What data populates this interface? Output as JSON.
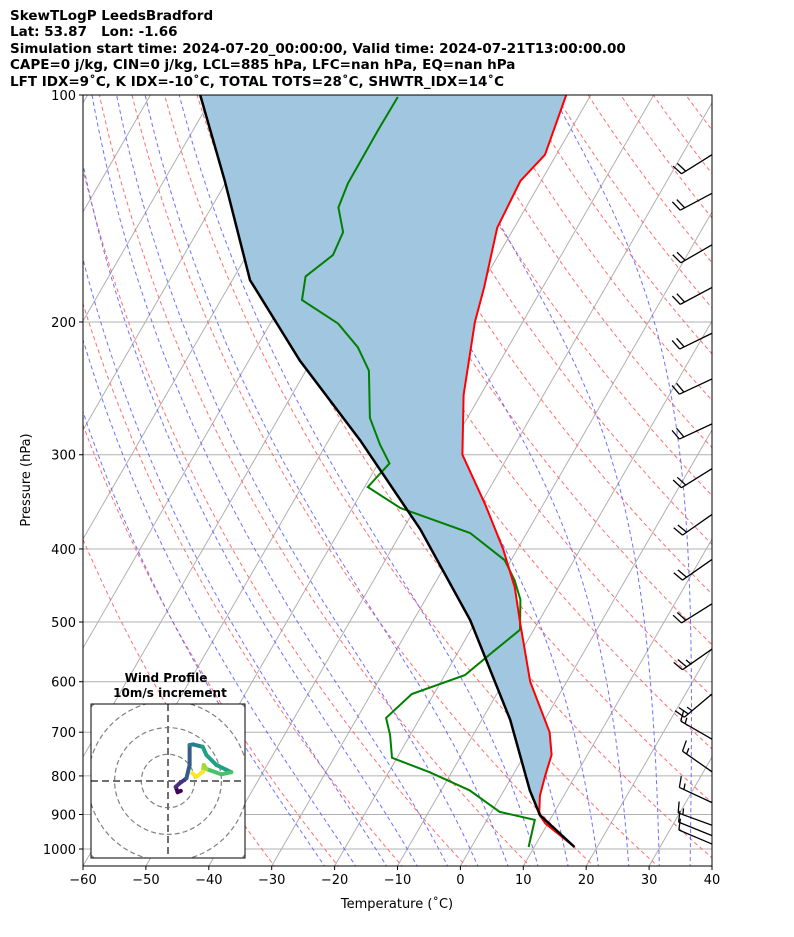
{
  "chart_data": {
    "type": "line",
    "title_lines": [
      "SkewTLogP LeedsBradford",
      "Lat: 53.87   Lon: -1.66",
      "Simulation start time: 2024-07-20_00:00:00, Valid time: 2024-07-21T13:00:00.00",
      "CAPE=0 j/kg, CIN=0 j/kg, LCL=885 hPa, LFC=nan hPa, EQ=nan hPa",
      "LFT IDX=9˚C, K IDX=-10˚C, TOTAL TOTS=28˚C, SHWTR_IDX=14˚C"
    ],
    "xlabel": "Temperature (˚C)",
    "ylabel": "Pressure (hPa)",
    "xlim": [
      -60,
      40
    ],
    "ylim": [
      1050,
      100
    ],
    "x_ticks": [
      -60,
      -50,
      -40,
      -30,
      -20,
      -10,
      0,
      10,
      20,
      30,
      40
    ],
    "x_tick_labels": [
      "−60",
      "−50",
      "−40",
      "−30",
      "−20",
      "−10",
      "0",
      "10",
      "20",
      "30",
      "40"
    ],
    "y_ticks": [
      100,
      200,
      300,
      400,
      500,
      600,
      700,
      800,
      900,
      1000
    ],
    "y_tick_labels": [
      "100",
      "200",
      "300",
      "400",
      "500",
      "600",
      "700",
      "800",
      "900",
      "1000"
    ],
    "grid": true,
    "series": [
      {
        "name": "temperature",
        "color": "#ff0000",
        "pressure": [
          994,
          925,
          900,
          850,
          800,
          750,
          700,
          600,
          500,
          450,
          400,
          350,
          300,
          250,
          200,
          180,
          150,
          130,
          120,
          100
        ],
        "values": [
          16.4,
          9.6,
          7.8,
          6.2,
          5.2,
          4.3,
          1.9,
          -5.8,
          -12.9,
          -16.9,
          -22.3,
          -29.1,
          -37.4,
          -42.7,
          -47.6,
          -49.3,
          -52.7,
          -53.3,
          -51.8,
          -53.9
        ]
      },
      {
        "name": "dewpoint",
        "color": "#008000",
        "pressure": [
          994,
          915,
          893,
          836,
          791,
          757,
          706,
          670,
          623,
          588,
          545,
          512,
          467,
          440,
          414,
          381,
          353,
          331,
          308,
          291,
          268,
          232,
          216,
          201,
          187,
          174,
          163,
          152,
          141,
          131,
          111,
          100.6
        ],
        "values": [
          9.1,
          7.6,
          1.3,
          -5.5,
          -13.5,
          -20.8,
          -23.2,
          -25.4,
          -23.5,
          -16.8,
          -14.3,
          -12.2,
          -14.9,
          -17.6,
          -21.0,
          -29.0,
          -42.4,
          -49.5,
          -48.2,
          -51.4,
          -55.5,
          -60.0,
          -63.9,
          -69.2,
          -77.1,
          -78.7,
          -76.3,
          -76.8,
          -79.8,
          -80.5,
          -80.6,
          -80.5
        ]
      },
      {
        "name": "parcel",
        "color": "#000000",
        "pressure": [
          994,
          902,
          836,
          674,
          497,
          377,
          287,
          225,
          176,
          130,
          100
        ],
        "values": [
          16.4,
          8.0,
          4.1,
          -5.5,
          -21.0,
          -37.2,
          -55.0,
          -71.9,
          -87.2,
          -100.3,
          -112.1
        ]
      }
    ],
    "shading": {
      "between": [
        "parcel",
        "temperature"
      ],
      "color": "#a1c6df"
    },
    "background_lines": {
      "isotherm_color": "#b0b0b0",
      "dry_adiabat_color": "#ff6060",
      "moist_adiabat_color": "#6060ff",
      "dry_adiabats_theta_K": [
        240,
        250,
        260,
        270,
        280,
        290,
        300,
        310,
        320,
        330,
        340,
        350,
        360,
        370,
        380,
        390,
        400,
        410,
        420,
        430,
        440,
        450,
        460,
        470
      ],
      "moist_adiabats_start_C": [
        -25,
        -20,
        -15,
        -10,
        -5,
        0,
        5,
        10,
        15,
        20,
        25,
        30,
        35
      ]
    },
    "wind_barbs": [
      {
        "pressure": 120,
        "direction": 238,
        "speed_kt": 20
      },
      {
        "pressure": 135,
        "direction": 242,
        "speed_kt": 20
      },
      {
        "pressure": 158,
        "direction": 240,
        "speed_kt": 20
      },
      {
        "pressure": 180,
        "direction": 242,
        "speed_kt": 20
      },
      {
        "pressure": 207,
        "direction": 244,
        "speed_kt": 20
      },
      {
        "pressure": 238,
        "direction": 245,
        "speed_kt": 20
      },
      {
        "pressure": 273,
        "direction": 245,
        "speed_kt": 20
      },
      {
        "pressure": 313,
        "direction": 238,
        "speed_kt": 20
      },
      {
        "pressure": 360,
        "direction": 235,
        "speed_kt": 20
      },
      {
        "pressure": 413,
        "direction": 235,
        "speed_kt": 20
      },
      {
        "pressure": 473,
        "direction": 238,
        "speed_kt": 20
      },
      {
        "pressure": 543,
        "direction": 235,
        "speed_kt": 25
      },
      {
        "pressure": 623,
        "direction": 230,
        "speed_kt": 25
      },
      {
        "pressure": 715,
        "direction": 300,
        "speed_kt": 15
      },
      {
        "pressure": 790,
        "direction": 305,
        "speed_kt": 15
      },
      {
        "pressure": 868,
        "direction": 295,
        "speed_kt": 15
      },
      {
        "pressure": 930,
        "direction": 290,
        "speed_kt": 15
      },
      {
        "pressure": 960,
        "direction": 292,
        "speed_kt": 10
      },
      {
        "pressure": 985,
        "direction": 293,
        "speed_kt": 10
      }
    ],
    "hodograph": {
      "title": "Wind Profile",
      "subtitle": "10m/s increment",
      "ring_increment_ms": 10,
      "rings": 4,
      "u": [
        4.8,
        3.6,
        2.9,
        4.2,
        6.9,
        8.1,
        8.1,
        9.4,
        13.0,
        14.4,
        18.1,
        23.7,
        20.0,
        14.4,
        13.4,
        13.1,
        10.6,
        9.1
      ],
      "v": [
        -3.7,
        -4.2,
        -2.2,
        -1.0,
        1.0,
        6.0,
        13.5,
        13.7,
        12.8,
        9.7,
        6.0,
        3.3,
        2.5,
        4.5,
        6.0,
        3.5,
        1.6,
        2.9
      ],
      "colormap": "viridis"
    }
  }
}
